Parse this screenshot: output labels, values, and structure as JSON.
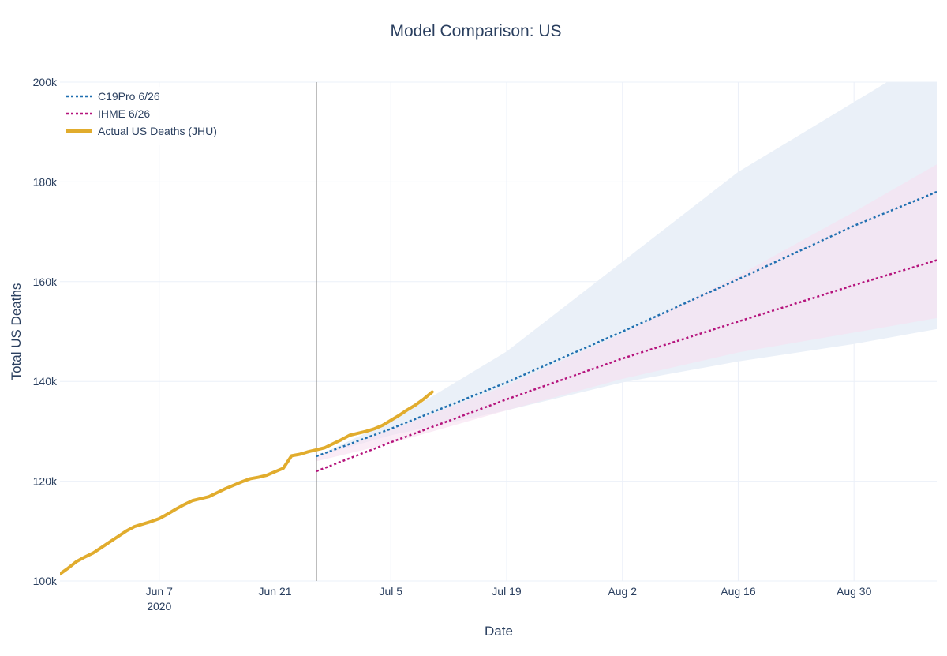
{
  "chart_data": {
    "type": "line",
    "title": "Model Comparison: US",
    "xlabel": "Date",
    "ylabel": "Total US Deaths",
    "grid": true,
    "legend_position": "top-left",
    "x_type": "date",
    "x_range": [
      "2020-05-26",
      "2020-09-09"
    ],
    "y_range": [
      100000,
      200000
    ],
    "x_ticks": [
      {
        "date": "2020-06-07",
        "label": "Jun 7",
        "sublabel": "2020"
      },
      {
        "date": "2020-06-21",
        "label": "Jun 21"
      },
      {
        "date": "2020-07-05",
        "label": "Jul 5"
      },
      {
        "date": "2020-07-19",
        "label": "Jul 19"
      },
      {
        "date": "2020-08-02",
        "label": "Aug 2"
      },
      {
        "date": "2020-08-16",
        "label": "Aug 16"
      },
      {
        "date": "2020-08-30",
        "label": "Aug 30"
      }
    ],
    "y_ticks": [
      {
        "value": 100000,
        "label": "100k"
      },
      {
        "value": 120000,
        "label": "120k"
      },
      {
        "value": 140000,
        "label": "140k"
      },
      {
        "value": 160000,
        "label": "160k"
      },
      {
        "value": 180000,
        "label": "180k"
      },
      {
        "value": 200000,
        "label": "200k"
      }
    ],
    "vline_date": "2020-06-26",
    "series": [
      {
        "name": "C19Pro 6/26",
        "color": "#1f6fb0",
        "style": "dotted",
        "band_color": "#eaf0f8",
        "x": [
          "2020-06-26",
          "2020-07-05",
          "2020-07-19",
          "2020-08-02",
          "2020-08-16",
          "2020-08-30",
          "2020-09-09"
        ],
        "values": [
          125000,
          130500,
          139800,
          150000,
          160500,
          171200,
          178000
        ],
        "lower": [
          125000,
          129200,
          134200,
          139800,
          144000,
          147500,
          150500
        ],
        "upper": [
          125000,
          132000,
          146000,
          164000,
          182000,
          196000,
          206000
        ]
      },
      {
        "name": "IHME 6/26",
        "color": "#b5137c",
        "style": "dotted",
        "band_color": "#f6e0f0",
        "x": [
          "2020-06-26",
          "2020-07-05",
          "2020-07-19",
          "2020-08-02",
          "2020-08-16",
          "2020-08-30",
          "2020-09-09"
        ],
        "values": [
          122000,
          127800,
          136400,
          144600,
          152000,
          159300,
          164300
        ],
        "lower": [
          124000,
          127600,
          134200,
          140500,
          145800,
          149800,
          152700
        ],
        "upper": [
          125000,
          130300,
          139200,
          149600,
          161200,
          174000,
          183500
        ]
      },
      {
        "name": "Actual US Deaths (JHU)",
        "color": "#e1ac2d",
        "style": "solid",
        "x": [
          "2020-05-26",
          "2020-05-27",
          "2020-05-28",
          "2020-05-29",
          "2020-05-30",
          "2020-05-31",
          "2020-06-01",
          "2020-06-02",
          "2020-06-03",
          "2020-06-04",
          "2020-06-05",
          "2020-06-06",
          "2020-06-07",
          "2020-06-08",
          "2020-06-09",
          "2020-06-10",
          "2020-06-11",
          "2020-06-12",
          "2020-06-13",
          "2020-06-14",
          "2020-06-15",
          "2020-06-16",
          "2020-06-17",
          "2020-06-18",
          "2020-06-19",
          "2020-06-20",
          "2020-06-21",
          "2020-06-22",
          "2020-06-23",
          "2020-06-24",
          "2020-06-25",
          "2020-06-26",
          "2020-06-27",
          "2020-06-28",
          "2020-06-29",
          "2020-06-30",
          "2020-07-01",
          "2020-07-02",
          "2020-07-03",
          "2020-07-04",
          "2020-07-05",
          "2020-07-06",
          "2020-07-07",
          "2020-07-08",
          "2020-07-09",
          "2020-07-10"
        ],
        "values": [
          101400,
          102600,
          103900,
          104800,
          105600,
          106700,
          107800,
          108900,
          110000,
          110900,
          111400,
          111900,
          112500,
          113400,
          114400,
          115300,
          116100,
          116500,
          116900,
          117700,
          118500,
          119200,
          119900,
          120500,
          120800,
          121200,
          121900,
          122600,
          125100,
          125400,
          125900,
          126300,
          126700,
          127500,
          128300,
          129200,
          129600,
          130000,
          130500,
          131200,
          132200,
          133200,
          134300,
          135300,
          136500,
          137900
        ]
      }
    ]
  }
}
